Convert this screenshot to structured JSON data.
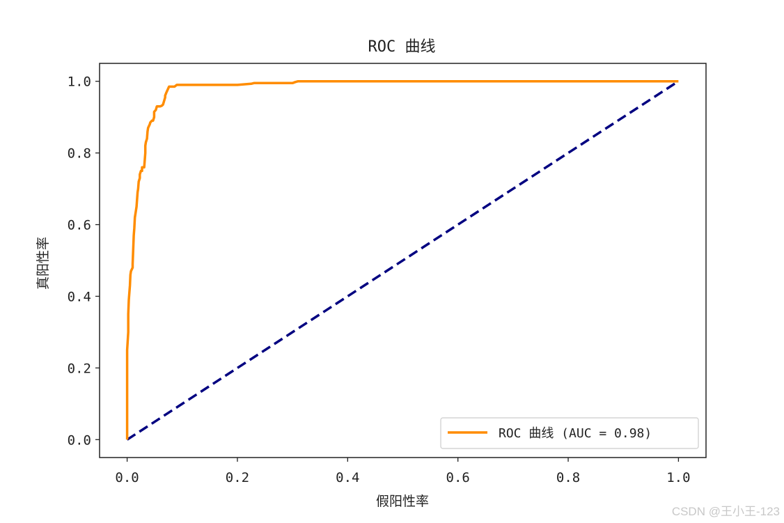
{
  "chart_data": {
    "type": "line",
    "title": "ROC 曲线",
    "xlabel": "假阳性率",
    "ylabel": "真阳性率",
    "xlim": [
      -0.05,
      1.05
    ],
    "ylim": [
      -0.05,
      1.05
    ],
    "xticks": [
      0.0,
      0.2,
      0.4,
      0.6,
      0.8,
      1.0
    ],
    "yticks": [
      0.0,
      0.2,
      0.4,
      0.6,
      0.8,
      1.0
    ],
    "xtick_labels": [
      "0.0",
      "0.2",
      "0.4",
      "0.6",
      "0.8",
      "1.0"
    ],
    "ytick_labels": [
      "0.0",
      "0.2",
      "0.4",
      "0.6",
      "0.8",
      "1.0"
    ],
    "grid": false,
    "legend_position": "lower-right",
    "series": [
      {
        "name": "ROC 曲线 (AUC = 0.98)",
        "color": "#ff8c00",
        "style": "solid",
        "x": [
          0.0,
          0.0,
          0.002,
          0.002,
          0.003,
          0.004,
          0.005,
          0.006,
          0.007,
          0.01,
          0.01,
          0.012,
          0.013,
          0.014,
          0.016,
          0.017,
          0.019,
          0.02,
          0.021,
          0.023,
          0.023,
          0.025,
          0.027,
          0.027,
          0.031,
          0.033,
          0.033,
          0.034,
          0.036,
          0.037,
          0.038,
          0.041,
          0.042,
          0.045,
          0.047,
          0.049,
          0.049,
          0.052,
          0.054,
          0.06,
          0.063,
          0.065,
          0.069,
          0.069,
          0.071,
          0.076,
          0.086,
          0.09,
          0.1,
          0.2,
          0.225,
          0.23,
          0.3,
          0.305,
          0.31,
          1.0
        ],
        "y": [
          0.0,
          0.25,
          0.3,
          0.35,
          0.39,
          0.41,
          0.43,
          0.46,
          0.47,
          0.48,
          0.49,
          0.57,
          0.59,
          0.62,
          0.64,
          0.65,
          0.69,
          0.7,
          0.72,
          0.73,
          0.74,
          0.75,
          0.75,
          0.76,
          0.76,
          0.8,
          0.82,
          0.83,
          0.84,
          0.86,
          0.87,
          0.88,
          0.885,
          0.89,
          0.89,
          0.9,
          0.915,
          0.92,
          0.93,
          0.93,
          0.932,
          0.935,
          0.955,
          0.96,
          0.968,
          0.985,
          0.985,
          0.99,
          0.99,
          0.99,
          0.993,
          0.995,
          0.995,
          0.998,
          1.0,
          1.0
        ]
      },
      {
        "name": "",
        "color": "#000080",
        "style": "dashed",
        "x": [
          0.0,
          1.0
        ],
        "y": [
          0.0,
          1.0
        ]
      }
    ]
  },
  "watermark": "CSDN @王小王-123"
}
